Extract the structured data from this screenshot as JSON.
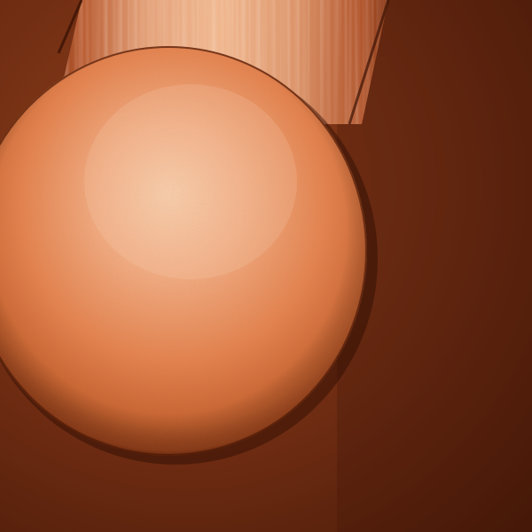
{
  "scene": {
    "subject": "sphere-on-streaked-backdrop",
    "colors": {
      "background_dark": "#4a1a08",
      "background_mid": "#7a3216",
      "background_light": "#9a4a22",
      "streak_light": "#f0b48e",
      "streak_mid": "#c86a3e",
      "sphere_highlight": "#f4c7a6",
      "sphere_mid": "#e88d5c",
      "sphere_shadow": "#b4501f",
      "rim_shadow": "#5a200a"
    }
  }
}
